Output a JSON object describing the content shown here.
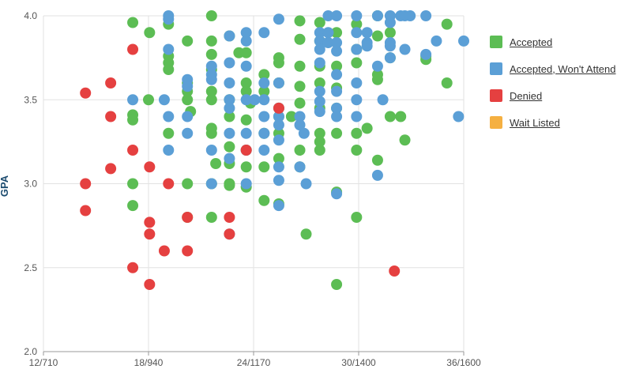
{
  "chart_data": {
    "type": "scatter",
    "ylabel": "GPA",
    "xlabel": "",
    "ylim": [
      2.0,
      4.0
    ],
    "xlim": [
      0,
      4
    ],
    "x_ticks": [
      "12/710",
      "18/940",
      "24/1170",
      "30/1400",
      "36/1600"
    ],
    "y_ticks": [
      "2.0",
      "2.5",
      "3.0",
      "3.5",
      "4.0"
    ],
    "grid": true,
    "legend_position": "right",
    "series": [
      {
        "name": "Accepted",
        "color": "#5cbd54",
        "points": [
          [
            0.85,
            3.96
          ],
          [
            0.85,
            3.41
          ],
          [
            0.85,
            3.38
          ],
          [
            0.85,
            3.0
          ],
          [
            0.85,
            2.87
          ],
          [
            1.01,
            3.9
          ],
          [
            1.0,
            3.5
          ],
          [
            1.19,
            3.95
          ],
          [
            1.19,
            3.76
          ],
          [
            1.19,
            3.72
          ],
          [
            1.19,
            3.68
          ],
          [
            1.19,
            3.3
          ],
          [
            1.37,
            3.85
          ],
          [
            1.37,
            3.6
          ],
          [
            1.37,
            3.55
          ],
          [
            1.37,
            3.5
          ],
          [
            1.37,
            3.0
          ],
          [
            1.37,
            2.8
          ],
          [
            1.4,
            3.43
          ],
          [
            1.6,
            4.0
          ],
          [
            1.6,
            3.85
          ],
          [
            1.6,
            3.77
          ],
          [
            1.6,
            3.68
          ],
          [
            1.6,
            3.55
          ],
          [
            1.6,
            3.5
          ],
          [
            1.6,
            3.33
          ],
          [
            1.6,
            3.3
          ],
          [
            1.6,
            3.0
          ],
          [
            1.6,
            2.8
          ],
          [
            1.64,
            3.12
          ],
          [
            1.77,
            3.88
          ],
          [
            1.77,
            3.5
          ],
          [
            1.77,
            3.4
          ],
          [
            1.77,
            3.22
          ],
          [
            1.77,
            3.12
          ],
          [
            1.77,
            3.0
          ],
          [
            1.77,
            2.99
          ],
          [
            1.86,
            3.78
          ],
          [
            1.93,
            3.78
          ],
          [
            1.93,
            3.6
          ],
          [
            1.93,
            3.55
          ],
          [
            1.93,
            3.38
          ],
          [
            1.93,
            3.2
          ],
          [
            1.93,
            3.1
          ],
          [
            1.93,
            2.98
          ],
          [
            1.97,
            3.48
          ],
          [
            2.1,
            3.65
          ],
          [
            2.1,
            3.55
          ],
          [
            2.1,
            3.3
          ],
          [
            2.1,
            3.1
          ],
          [
            2.1,
            2.9
          ],
          [
            2.24,
            3.75
          ],
          [
            2.24,
            3.72
          ],
          [
            2.24,
            3.6
          ],
          [
            2.24,
            3.45
          ],
          [
            2.24,
            3.4
          ],
          [
            2.24,
            3.3
          ],
          [
            2.24,
            3.15
          ],
          [
            2.24,
            2.88
          ],
          [
            2.36,
            3.4
          ],
          [
            2.44,
            3.97
          ],
          [
            2.44,
            3.86
          ],
          [
            2.44,
            3.7
          ],
          [
            2.44,
            3.58
          ],
          [
            2.44,
            3.48
          ],
          [
            2.44,
            3.2
          ],
          [
            2.44,
            3.1
          ],
          [
            2.5,
            2.7
          ],
          [
            2.63,
            3.96
          ],
          [
            2.63,
            3.85
          ],
          [
            2.63,
            3.7
          ],
          [
            2.63,
            3.6
          ],
          [
            2.63,
            3.45
          ],
          [
            2.63,
            3.3
          ],
          [
            2.63,
            3.25
          ],
          [
            2.63,
            3.2
          ],
          [
            2.79,
            3.9
          ],
          [
            2.79,
            3.7
          ],
          [
            2.79,
            3.57
          ],
          [
            2.79,
            3.45
          ],
          [
            2.79,
            3.3
          ],
          [
            2.79,
            2.95
          ],
          [
            2.79,
            2.4
          ],
          [
            2.98,
            3.95
          ],
          [
            2.98,
            3.8
          ],
          [
            2.98,
            3.72
          ],
          [
            2.98,
            3.3
          ],
          [
            2.98,
            3.2
          ],
          [
            2.98,
            2.8
          ],
          [
            3.08,
            3.33
          ],
          [
            3.18,
            4.0
          ],
          [
            3.18,
            3.88
          ],
          [
            3.18,
            3.65
          ],
          [
            3.18,
            3.62
          ],
          [
            3.18,
            3.14
          ],
          [
            3.3,
            3.9
          ],
          [
            3.3,
            3.75
          ],
          [
            3.3,
            3.4
          ],
          [
            3.4,
            3.4
          ],
          [
            3.44,
            3.26
          ],
          [
            3.64,
            3.76
          ],
          [
            3.64,
            3.74
          ],
          [
            3.84,
            3.95
          ],
          [
            3.84,
            3.6
          ]
        ]
      },
      {
        "name": "Accepted, Won't Attend",
        "color": "#5b9fd6",
        "points": [
          [
            0.85,
            3.5
          ],
          [
            1.15,
            3.5
          ],
          [
            1.19,
            4.0
          ],
          [
            1.19,
            3.98
          ],
          [
            1.19,
            3.8
          ],
          [
            1.19,
            3.4
          ],
          [
            1.19,
            3.2
          ],
          [
            1.37,
            3.62
          ],
          [
            1.37,
            3.58
          ],
          [
            1.37,
            3.4
          ],
          [
            1.37,
            3.3
          ],
          [
            1.6,
            3.7
          ],
          [
            1.6,
            3.65
          ],
          [
            1.6,
            3.62
          ],
          [
            1.6,
            3.2
          ],
          [
            1.6,
            3.0
          ],
          [
            1.77,
            3.88
          ],
          [
            1.77,
            3.72
          ],
          [
            1.77,
            3.6
          ],
          [
            1.77,
            3.5
          ],
          [
            1.77,
            3.45
          ],
          [
            1.77,
            3.3
          ],
          [
            1.77,
            3.15
          ],
          [
            1.77,
            2.7
          ],
          [
            1.93,
            3.9
          ],
          [
            1.93,
            3.85
          ],
          [
            1.93,
            3.7
          ],
          [
            1.93,
            3.5
          ],
          [
            1.93,
            3.3
          ],
          [
            1.93,
            3.2
          ],
          [
            1.93,
            3.0
          ],
          [
            2.01,
            3.5
          ],
          [
            2.1,
            3.9
          ],
          [
            2.1,
            3.6
          ],
          [
            2.1,
            3.5
          ],
          [
            2.1,
            3.4
          ],
          [
            2.1,
            3.3
          ],
          [
            2.1,
            3.2
          ],
          [
            2.24,
            3.98
          ],
          [
            2.24,
            3.6
          ],
          [
            2.24,
            3.45
          ],
          [
            2.24,
            3.4
          ],
          [
            2.24,
            3.35
          ],
          [
            2.24,
            3.26
          ],
          [
            2.24,
            3.1
          ],
          [
            2.24,
            3.02
          ],
          [
            2.24,
            2.87
          ],
          [
            2.44,
            3.4
          ],
          [
            2.44,
            3.35
          ],
          [
            2.44,
            3.1
          ],
          [
            2.48,
            3.3
          ],
          [
            2.5,
            3.0
          ],
          [
            2.63,
            3.9
          ],
          [
            2.63,
            3.85
          ],
          [
            2.63,
            3.8
          ],
          [
            2.63,
            3.72
          ],
          [
            2.63,
            3.55
          ],
          [
            2.63,
            3.49
          ],
          [
            2.63,
            3.43
          ],
          [
            2.71,
            4.0
          ],
          [
            2.71,
            3.9
          ],
          [
            2.71,
            3.84
          ],
          [
            2.79,
            4.0
          ],
          [
            2.79,
            3.84
          ],
          [
            2.79,
            3.79
          ],
          [
            2.79,
            3.65
          ],
          [
            2.79,
            3.55
          ],
          [
            2.79,
            3.45
          ],
          [
            2.79,
            3.4
          ],
          [
            2.79,
            2.94
          ],
          [
            2.98,
            4.0
          ],
          [
            2.98,
            3.9
          ],
          [
            2.98,
            3.8
          ],
          [
            2.98,
            3.6
          ],
          [
            2.98,
            3.5
          ],
          [
            2.98,
            3.4
          ],
          [
            3.08,
            3.9
          ],
          [
            3.08,
            3.84
          ],
          [
            3.08,
            3.82
          ],
          [
            3.18,
            4.0
          ],
          [
            3.18,
            3.7
          ],
          [
            3.18,
            3.05
          ],
          [
            3.23,
            3.5
          ],
          [
            3.3,
            4.0
          ],
          [
            3.3,
            3.96
          ],
          [
            3.3,
            3.84
          ],
          [
            3.3,
            3.82
          ],
          [
            3.3,
            3.75
          ],
          [
            3.4,
            4.0
          ],
          [
            3.44,
            4.0
          ],
          [
            3.44,
            3.8
          ],
          [
            3.49,
            4.0
          ],
          [
            3.64,
            4.0
          ],
          [
            3.64,
            3.77
          ],
          [
            3.74,
            3.85
          ],
          [
            4.0,
            3.85
          ],
          [
            3.95,
            3.4
          ]
        ]
      },
      {
        "name": "Denied",
        "color": "#e54040",
        "points": [
          [
            0.4,
            3.54
          ],
          [
            0.4,
            3.0
          ],
          [
            0.4,
            2.84
          ],
          [
            0.64,
            3.6
          ],
          [
            0.64,
            3.4
          ],
          [
            0.64,
            3.09
          ],
          [
            0.85,
            3.8
          ],
          [
            0.85,
            3.2
          ],
          [
            0.85,
            2.5
          ],
          [
            1.01,
            3.1
          ],
          [
            1.01,
            2.77
          ],
          [
            1.01,
            2.7
          ],
          [
            1.01,
            2.4
          ],
          [
            1.19,
            3.0
          ],
          [
            1.15,
            2.6
          ],
          [
            1.37,
            2.8
          ],
          [
            1.37,
            2.6
          ],
          [
            1.77,
            2.8
          ],
          [
            1.77,
            2.7
          ],
          [
            1.93,
            3.2
          ],
          [
            2.24,
            3.45
          ],
          [
            3.34,
            2.48
          ]
        ]
      },
      {
        "name": "Wait Listed",
        "color": "#f5b041",
        "points": []
      }
    ]
  }
}
